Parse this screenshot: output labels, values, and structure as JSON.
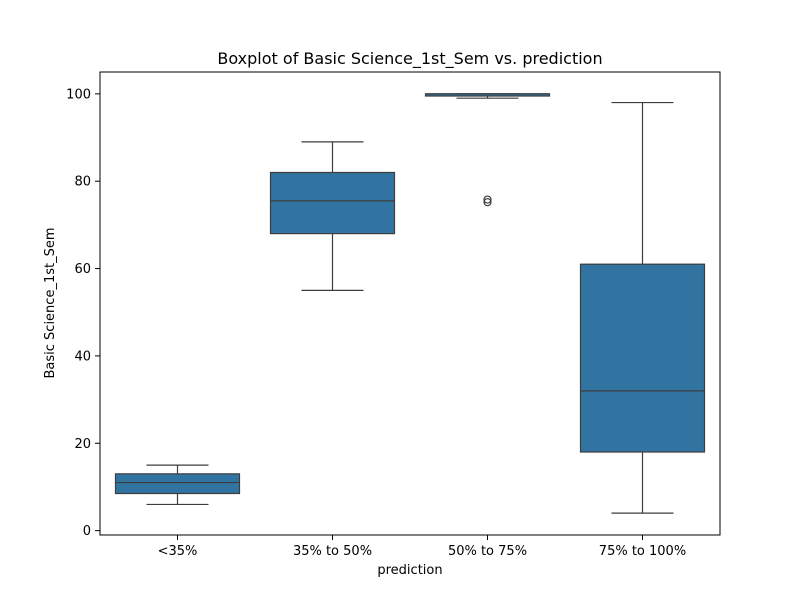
{
  "chart_data": {
    "type": "box",
    "title": "Boxplot of Basic Science_1st_Sem vs. prediction",
    "xlabel": "prediction",
    "ylabel": "Basic Science_1st_Sem",
    "categories": [
      "<35%",
      "35% to 50%",
      "50% to 75%",
      "75% to 100%"
    ],
    "ylim": [
      -1,
      105
    ],
    "yticks": [
      0,
      20,
      40,
      60,
      80,
      100
    ],
    "grid": false,
    "box_color": "#3274a1",
    "line_color": "#3d3d3d",
    "boxes": [
      {
        "category": "<35%",
        "whisker_low": 6,
        "q1": 8.5,
        "median": 11,
        "q3": 13,
        "whisker_high": 15,
        "outliers": []
      },
      {
        "category": "35% to 50%",
        "whisker_low": 55,
        "q1": 68,
        "median": 75.5,
        "q3": 82,
        "whisker_high": 89,
        "outliers": []
      },
      {
        "category": "50% to 75%",
        "whisker_low": 99,
        "q1": 99.5,
        "median": 100,
        "q3": 100,
        "whisker_high": 100,
        "outliers": [
          75.2,
          75.8
        ]
      },
      {
        "category": "75% to 100%",
        "whisker_low": 4,
        "q1": 18,
        "median": 32,
        "q3": 61,
        "whisker_high": 98,
        "outliers": []
      }
    ]
  }
}
